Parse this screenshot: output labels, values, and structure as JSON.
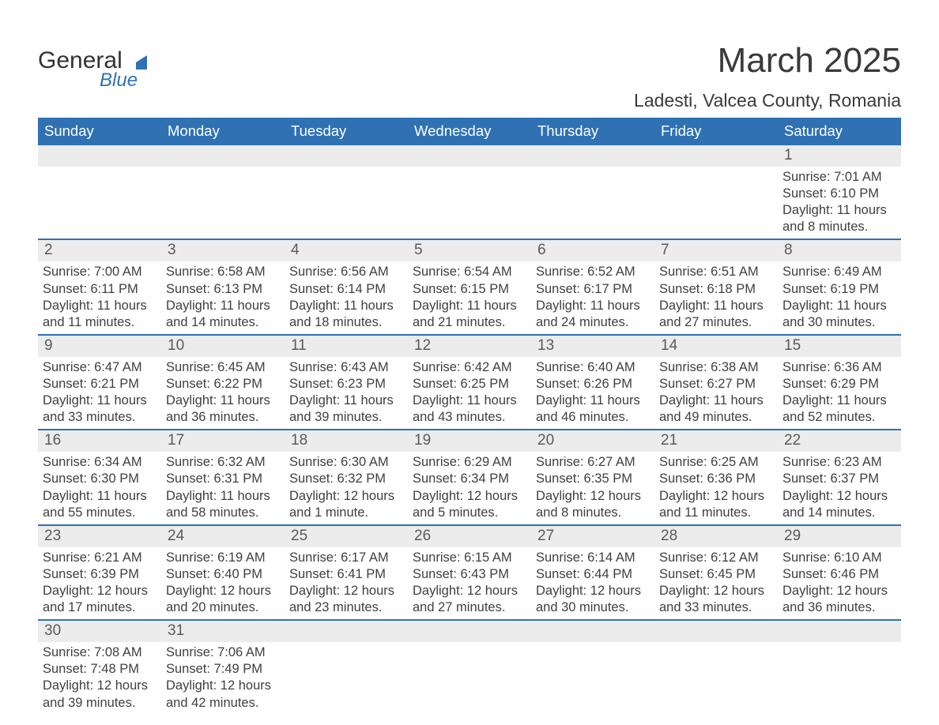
{
  "logo": {
    "text_primary": "General",
    "text_secondary": "Blue",
    "color_primary": "#333333",
    "color_secondary": "#2f71b3"
  },
  "title": "March 2025",
  "subtitle": "Ladesti, Valcea County, Romania",
  "colors": {
    "header_bg": "#2f71b3",
    "header_text": "#ffffff",
    "day_band_bg": "#ececec",
    "row_border": "#2f71b3",
    "body_text": "#404040",
    "page_bg": "#ffffff"
  },
  "weekdays": [
    "Sunday",
    "Monday",
    "Tuesday",
    "Wednesday",
    "Thursday",
    "Friday",
    "Saturday"
  ],
  "field_labels": {
    "sunrise": "Sunrise:",
    "sunset": "Sunset:",
    "daylight_prefix": "Daylight:"
  },
  "weeks": [
    [
      null,
      null,
      null,
      null,
      null,
      null,
      {
        "day": "1",
        "sunrise": "7:01 AM",
        "sunset": "6:10 PM",
        "daylight": "11 hours and 8 minutes."
      }
    ],
    [
      {
        "day": "2",
        "sunrise": "7:00 AM",
        "sunset": "6:11 PM",
        "daylight": "11 hours and 11 minutes."
      },
      {
        "day": "3",
        "sunrise": "6:58 AM",
        "sunset": "6:13 PM",
        "daylight": "11 hours and 14 minutes."
      },
      {
        "day": "4",
        "sunrise": "6:56 AM",
        "sunset": "6:14 PM",
        "daylight": "11 hours and 18 minutes."
      },
      {
        "day": "5",
        "sunrise": "6:54 AM",
        "sunset": "6:15 PM",
        "daylight": "11 hours and 21 minutes."
      },
      {
        "day": "6",
        "sunrise": "6:52 AM",
        "sunset": "6:17 PM",
        "daylight": "11 hours and 24 minutes."
      },
      {
        "day": "7",
        "sunrise": "6:51 AM",
        "sunset": "6:18 PM",
        "daylight": "11 hours and 27 minutes."
      },
      {
        "day": "8",
        "sunrise": "6:49 AM",
        "sunset": "6:19 PM",
        "daylight": "11 hours and 30 minutes."
      }
    ],
    [
      {
        "day": "9",
        "sunrise": "6:47 AM",
        "sunset": "6:21 PM",
        "daylight": "11 hours and 33 minutes."
      },
      {
        "day": "10",
        "sunrise": "6:45 AM",
        "sunset": "6:22 PM",
        "daylight": "11 hours and 36 minutes."
      },
      {
        "day": "11",
        "sunrise": "6:43 AM",
        "sunset": "6:23 PM",
        "daylight": "11 hours and 39 minutes."
      },
      {
        "day": "12",
        "sunrise": "6:42 AM",
        "sunset": "6:25 PM",
        "daylight": "11 hours and 43 minutes."
      },
      {
        "day": "13",
        "sunrise": "6:40 AM",
        "sunset": "6:26 PM",
        "daylight": "11 hours and 46 minutes."
      },
      {
        "day": "14",
        "sunrise": "6:38 AM",
        "sunset": "6:27 PM",
        "daylight": "11 hours and 49 minutes."
      },
      {
        "day": "15",
        "sunrise": "6:36 AM",
        "sunset": "6:29 PM",
        "daylight": "11 hours and 52 minutes."
      }
    ],
    [
      {
        "day": "16",
        "sunrise": "6:34 AM",
        "sunset": "6:30 PM",
        "daylight": "11 hours and 55 minutes."
      },
      {
        "day": "17",
        "sunrise": "6:32 AM",
        "sunset": "6:31 PM",
        "daylight": "11 hours and 58 minutes."
      },
      {
        "day": "18",
        "sunrise": "6:30 AM",
        "sunset": "6:32 PM",
        "daylight": "12 hours and 1 minute."
      },
      {
        "day": "19",
        "sunrise": "6:29 AM",
        "sunset": "6:34 PM",
        "daylight": "12 hours and 5 minutes."
      },
      {
        "day": "20",
        "sunrise": "6:27 AM",
        "sunset": "6:35 PM",
        "daylight": "12 hours and 8 minutes."
      },
      {
        "day": "21",
        "sunrise": "6:25 AM",
        "sunset": "6:36 PM",
        "daylight": "12 hours and 11 minutes."
      },
      {
        "day": "22",
        "sunrise": "6:23 AM",
        "sunset": "6:37 PM",
        "daylight": "12 hours and 14 minutes."
      }
    ],
    [
      {
        "day": "23",
        "sunrise": "6:21 AM",
        "sunset": "6:39 PM",
        "daylight": "12 hours and 17 minutes."
      },
      {
        "day": "24",
        "sunrise": "6:19 AM",
        "sunset": "6:40 PM",
        "daylight": "12 hours and 20 minutes."
      },
      {
        "day": "25",
        "sunrise": "6:17 AM",
        "sunset": "6:41 PM",
        "daylight": "12 hours and 23 minutes."
      },
      {
        "day": "26",
        "sunrise": "6:15 AM",
        "sunset": "6:43 PM",
        "daylight": "12 hours and 27 minutes."
      },
      {
        "day": "27",
        "sunrise": "6:14 AM",
        "sunset": "6:44 PM",
        "daylight": "12 hours and 30 minutes."
      },
      {
        "day": "28",
        "sunrise": "6:12 AM",
        "sunset": "6:45 PM",
        "daylight": "12 hours and 33 minutes."
      },
      {
        "day": "29",
        "sunrise": "6:10 AM",
        "sunset": "6:46 PM",
        "daylight": "12 hours and 36 minutes."
      }
    ],
    [
      {
        "day": "30",
        "sunrise": "7:08 AM",
        "sunset": "7:48 PM",
        "daylight": "12 hours and 39 minutes."
      },
      {
        "day": "31",
        "sunrise": "7:06 AM",
        "sunset": "7:49 PM",
        "daylight": "12 hours and 42 minutes."
      },
      null,
      null,
      null,
      null,
      null
    ]
  ]
}
